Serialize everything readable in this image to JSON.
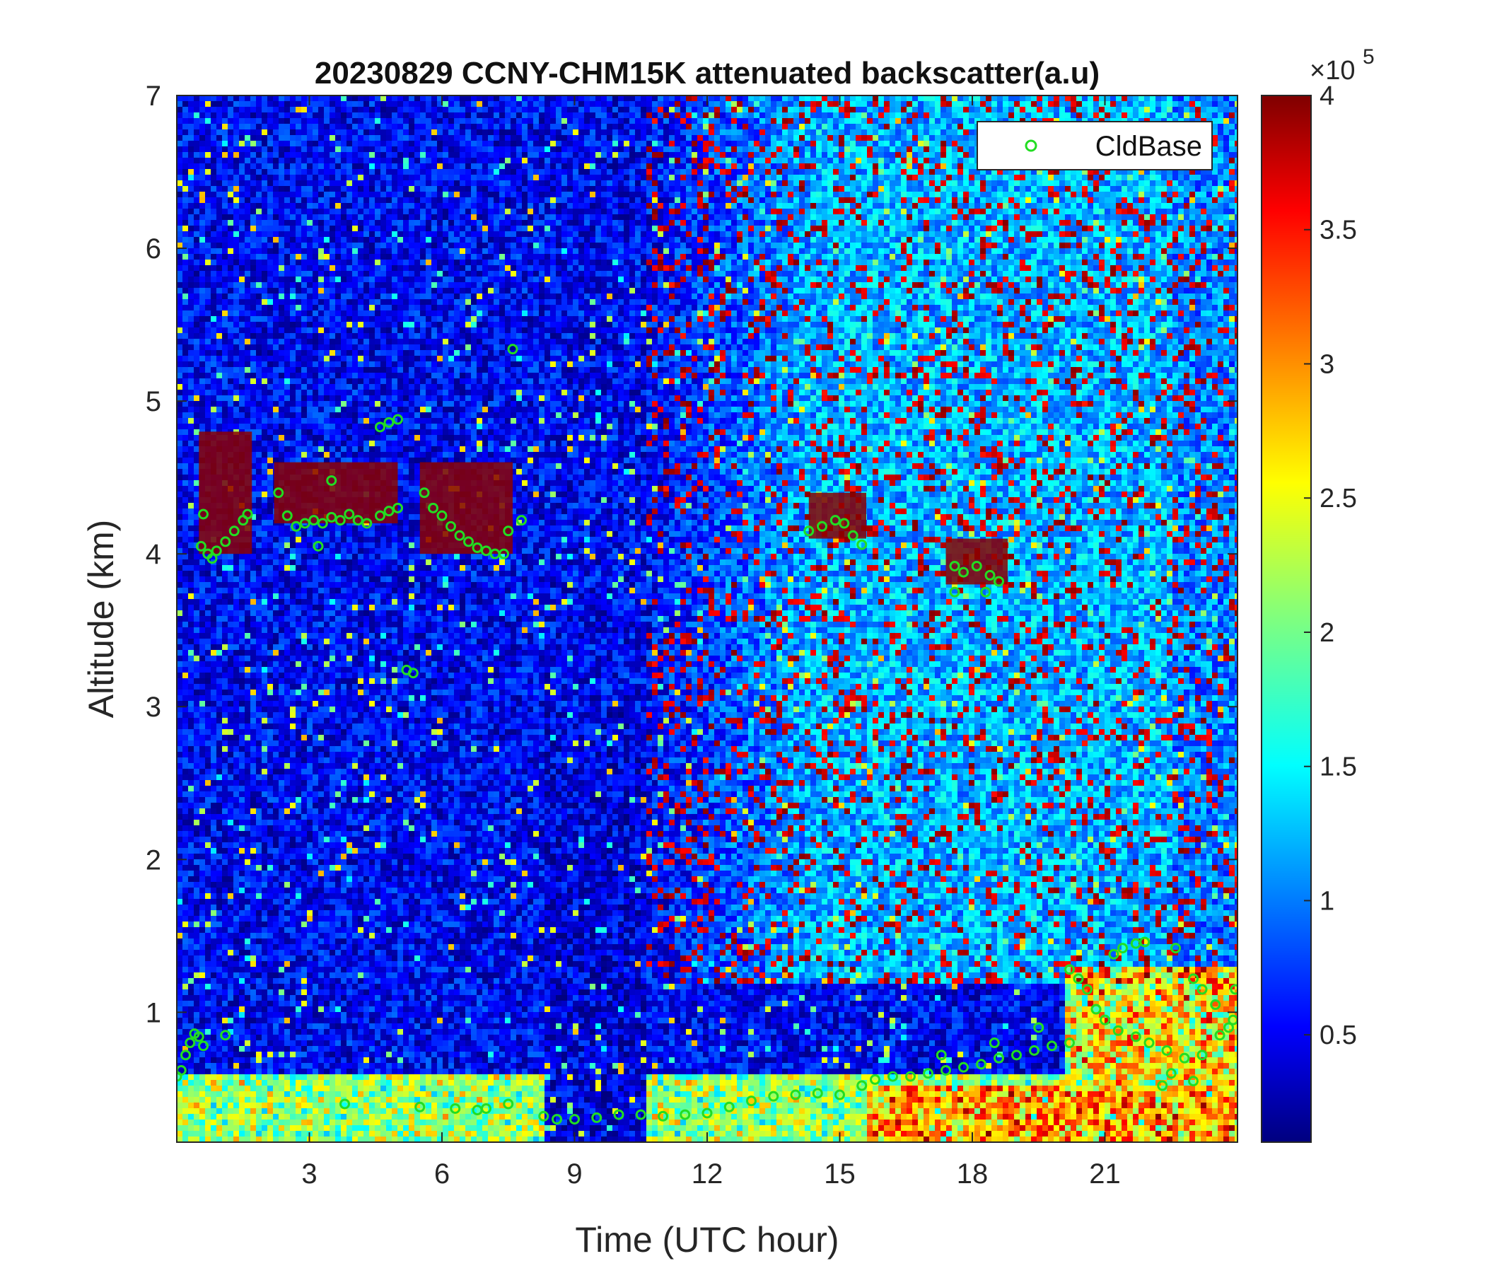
{
  "chart_data": {
    "type": "heatmap",
    "title": "20230829 CCNY-CHM15K attenuated backscatter(a.u)",
    "xlabel": "Time (UTC hour)",
    "ylabel": "Altitude (km)",
    "xlim": [
      0,
      24
    ],
    "ylim": [
      0.15,
      7
    ],
    "xticks": [
      3,
      6,
      9,
      12,
      15,
      18,
      21
    ],
    "yticks": [
      1,
      2,
      3,
      4,
      5,
      6,
      7
    ],
    "colormap": "jet",
    "colorbar": {
      "range": [
        0.1,
        4
      ],
      "ticks": [
        0.5,
        1,
        1.5,
        2,
        2.5,
        3,
        3.5,
        4
      ],
      "tick_labels": [
        "0.5",
        "1",
        "1.5",
        "2",
        "2.5",
        "3",
        "3.5",
        "4"
      ],
      "exponent_label": "×10",
      "exponent": "5"
    },
    "legend": {
      "position": "top-right",
      "entries": [
        "CldBase"
      ]
    },
    "series": [
      {
        "name": "CldBase",
        "marker": "circle",
        "color": "#22dd22",
        "points": [
          [
            0.0,
            0.58
          ],
          [
            0.1,
            0.62
          ],
          [
            0.2,
            0.72
          ],
          [
            0.3,
            0.8
          ],
          [
            0.4,
            0.86
          ],
          [
            0.5,
            0.84
          ],
          [
            0.6,
            0.78
          ],
          [
            1.1,
            0.85
          ],
          [
            0.55,
            4.05
          ],
          [
            0.7,
            4.0
          ],
          [
            0.8,
            3.97
          ],
          [
            0.9,
            4.02
          ],
          [
            1.1,
            4.08
          ],
          [
            1.3,
            4.15
          ],
          [
            1.5,
            4.22
          ],
          [
            1.6,
            4.26
          ],
          [
            0.6,
            4.26
          ],
          [
            2.3,
            4.4
          ],
          [
            2.5,
            4.25
          ],
          [
            2.7,
            4.18
          ],
          [
            2.9,
            4.2
          ],
          [
            3.1,
            4.22
          ],
          [
            3.3,
            4.2
          ],
          [
            3.5,
            4.24
          ],
          [
            3.7,
            4.22
          ],
          [
            3.9,
            4.26
          ],
          [
            4.1,
            4.22
          ],
          [
            4.3,
            4.2
          ],
          [
            4.6,
            4.25
          ],
          [
            4.8,
            4.28
          ],
          [
            5.0,
            4.3
          ],
          [
            3.2,
            4.05
          ],
          [
            3.5,
            4.48
          ],
          [
            4.6,
            4.83
          ],
          [
            4.8,
            4.86
          ],
          [
            5.0,
            4.88
          ],
          [
            5.2,
            3.24
          ],
          [
            5.35,
            3.22
          ],
          [
            5.6,
            4.4
          ],
          [
            5.8,
            4.3
          ],
          [
            6.0,
            4.25
          ],
          [
            6.2,
            4.18
          ],
          [
            6.4,
            4.12
          ],
          [
            6.6,
            4.08
          ],
          [
            6.8,
            4.04
          ],
          [
            7.0,
            4.02
          ],
          [
            7.2,
            4.0
          ],
          [
            7.4,
            4.0
          ],
          [
            7.5,
            4.15
          ],
          [
            7.8,
            4.22
          ],
          [
            7.6,
            5.34
          ],
          [
            3.8,
            0.4
          ],
          [
            5.5,
            0.38
          ],
          [
            6.3,
            0.37
          ],
          [
            6.8,
            0.36
          ],
          [
            7.0,
            0.37
          ],
          [
            7.5,
            0.4
          ],
          [
            8.3,
            0.32
          ],
          [
            8.6,
            0.3
          ],
          [
            9.0,
            0.3
          ],
          [
            9.5,
            0.31
          ],
          [
            10.0,
            0.33
          ],
          [
            10.5,
            0.33
          ],
          [
            11.0,
            0.32
          ],
          [
            11.5,
            0.33
          ],
          [
            12.0,
            0.34
          ],
          [
            12.5,
            0.38
          ],
          [
            13.0,
            0.42
          ],
          [
            13.5,
            0.45
          ],
          [
            14.0,
            0.46
          ],
          [
            14.5,
            0.47
          ],
          [
            15.0,
            0.46
          ],
          [
            14.3,
            4.15
          ],
          [
            14.6,
            4.18
          ],
          [
            14.9,
            4.22
          ],
          [
            15.1,
            4.2
          ],
          [
            15.3,
            4.12
          ],
          [
            15.5,
            4.06
          ],
          [
            15.5,
            0.52
          ],
          [
            15.8,
            0.56
          ],
          [
            16.2,
            0.58
          ],
          [
            16.6,
            0.58
          ],
          [
            17.0,
            0.6
          ],
          [
            17.4,
            0.62
          ],
          [
            17.8,
            0.64
          ],
          [
            18.2,
            0.66
          ],
          [
            18.6,
            0.7
          ],
          [
            19.0,
            0.72
          ],
          [
            19.4,
            0.75
          ],
          [
            19.8,
            0.78
          ],
          [
            20.2,
            0.8
          ],
          [
            17.3,
            0.72
          ],
          [
            18.5,
            0.8
          ],
          [
            19.5,
            0.9
          ],
          [
            17.6,
            3.92
          ],
          [
            17.8,
            3.88
          ],
          [
            17.6,
            3.75
          ],
          [
            18.1,
            3.92
          ],
          [
            18.4,
            3.86
          ],
          [
            18.6,
            3.82
          ],
          [
            18.3,
            3.75
          ],
          [
            20.2,
            1.28
          ],
          [
            20.4,
            1.22
          ],
          [
            20.6,
            1.15
          ],
          [
            20.8,
            1.02
          ],
          [
            21.0,
            0.95
          ],
          [
            21.3,
            0.88
          ],
          [
            21.7,
            0.84
          ],
          [
            22.0,
            0.8
          ],
          [
            22.4,
            0.75
          ],
          [
            22.8,
            0.7
          ],
          [
            23.2,
            0.72
          ],
          [
            23.6,
            0.85
          ],
          [
            23.9,
            0.95
          ],
          [
            21.2,
            1.38
          ],
          [
            21.4,
            1.42
          ],
          [
            21.7,
            1.45
          ],
          [
            21.9,
            1.46
          ],
          [
            22.6,
            1.42
          ],
          [
            23.0,
            1.22
          ],
          [
            23.2,
            1.15
          ],
          [
            23.5,
            1.05
          ],
          [
            23.8,
            0.9
          ],
          [
            22.5,
            0.6
          ],
          [
            22.3,
            0.52
          ],
          [
            23.0,
            0.55
          ],
          [
            23.95,
            1.15
          ]
        ]
      }
    ],
    "features": [
      {
        "description": "dense cloud layer",
        "x_range": [
          0.5,
          1.7
        ],
        "alt_range": [
          4.0,
          4.8
        ]
      },
      {
        "description": "dense cloud layer",
        "x_range": [
          2.2,
          5.0
        ],
        "alt_range": [
          4.2,
          4.6
        ]
      },
      {
        "description": "dense cloud layer",
        "x_range": [
          5.5,
          7.6
        ],
        "alt_range": [
          4.0,
          4.6
        ]
      },
      {
        "description": "dense cloud layer",
        "x_range": [
          14.3,
          15.6
        ],
        "alt_range": [
          4.1,
          4.4
        ]
      },
      {
        "description": "dense cloud layer",
        "x_range": [
          17.4,
          18.8
        ],
        "alt_range": [
          3.8,
          4.1
        ]
      }
    ]
  }
}
